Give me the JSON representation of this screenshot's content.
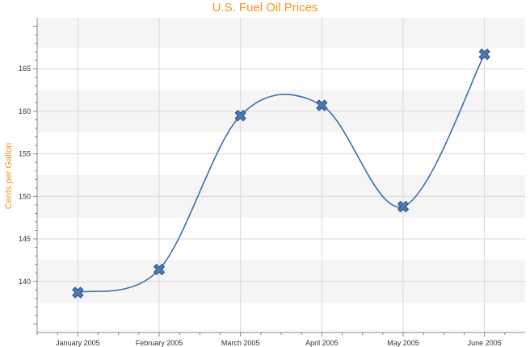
{
  "chart_data": {
    "type": "line",
    "title": "U.S. Fuel Oil Prices",
    "xlabel": "",
    "ylabel": "Cents per Gallon",
    "categories": [
      "January 2005",
      "February 2005",
      "March 2005",
      "April 2005",
      "May 2005",
      "June 2005"
    ],
    "series": [
      {
        "values": [
          138.7,
          141.4,
          159.5,
          160.7,
          148.8,
          166.7
        ]
      }
    ],
    "ylim": [
      134,
      171
    ],
    "yticks": [
      140,
      145,
      150,
      155,
      160,
      165
    ],
    "ytick_labels": [
      "140",
      "145",
      "150",
      "155",
      "160",
      "165"
    ],
    "grid": true,
    "smooth": true,
    "marker": "x",
    "colors": {
      "line": "#3c6ea8",
      "marker": "#4a7ab5",
      "marker_edge": "#2a4f7c",
      "title": "#f7941d",
      "band": "#f5f5f5",
      "grid": "#d9d9d9"
    }
  }
}
